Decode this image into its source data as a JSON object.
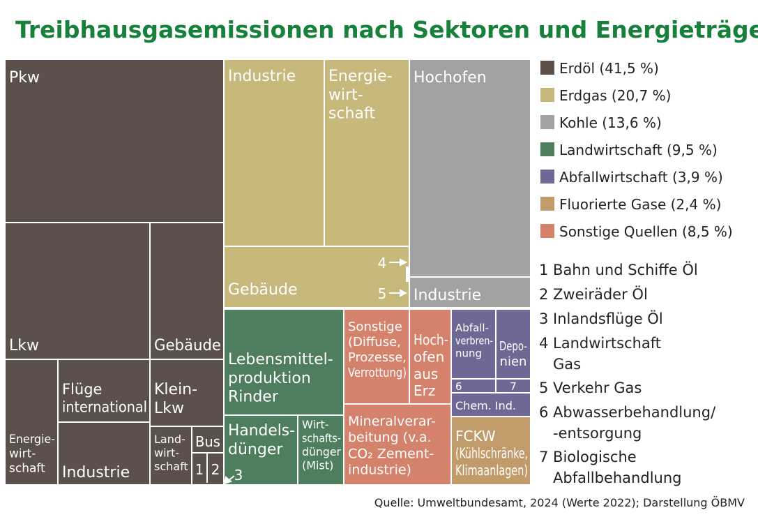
{
  "header": {
    "title": "Treibhausgasemissionen nach Sektoren und Energieträgern"
  },
  "nodes": [
    {
      "label": [
        "Pkw"
      ]
    },
    {
      "label": [
        "Lkw"
      ]
    },
    {
      "label": [
        "Gebäude"
      ]
    },
    {
      "label": [
        "Energie-",
        "wirt-",
        "schaft"
      ]
    },
    {
      "label": [
        "Flüge",
        "international"
      ]
    },
    {
      "label": [
        "Industrie"
      ]
    },
    {
      "label": [
        "Klein-",
        "Lkw"
      ]
    },
    {
      "label": [
        "Land-",
        "wirt-",
        "schaft"
      ]
    },
    {
      "label": [
        "Bus"
      ]
    },
    {
      "label": [
        "1"
      ]
    },
    {
      "label": [
        "2"
      ]
    },
    {
      "label": [
        "Industrie"
      ]
    },
    {
      "label": [
        "Energie-",
        "wirt-",
        "schaft"
      ]
    },
    {
      "label": [
        "Gebäude"
      ]
    },
    {
      "label": [
        "Hochofen"
      ]
    },
    {
      "label": [
        "Industrie"
      ]
    },
    {
      "label": [
        "Lebensmittel-",
        "produktion",
        "Rinder"
      ]
    },
    {
      "label": [
        "Handels-",
        "dünger"
      ]
    },
    {
      "label": [
        "Wirt-",
        "schafts-",
        "dünger",
        "(Mist)"
      ]
    },
    {
      "label": [
        "Sonstige",
        "(Diffuse,",
        "Prozesse,",
        "Verrottung)"
      ]
    },
    {
      "label": [
        "Hoch-",
        "ofen",
        "aus",
        "Erz"
      ]
    },
    {
      "label": [
        "Mineralverar-",
        "beitung (v.a.",
        "CO₂ Zement-",
        "industrie)"
      ]
    },
    {
      "label": [
        "Abfall-",
        "verbren-",
        "nung"
      ]
    },
    {
      "label": [
        "Depo-",
        "nien"
      ]
    },
    {
      "label": [
        "6"
      ]
    },
    {
      "label": [
        "7"
      ]
    },
    {
      "label": [
        "Chem. Ind."
      ]
    },
    {
      "label": [
        "FCKW",
        "(Kühlschränke,",
        "Klimaanlagen)"
      ]
    }
  ],
  "annotations": [
    "4",
    "5",
    "3"
  ],
  "legend": [
    {
      "label": "Erdöl (41,5 %)",
      "color": "#5c504b"
    },
    {
      "label": "Erdgas (20,7 %)",
      "color": "#c7b87c"
    },
    {
      "label": "Kohle (13,6 %)",
      "color": "#a2a2a2"
    },
    {
      "label": "Landwirtschaft (9,5 %)",
      "color": "#4f7e5e"
    },
    {
      "label": "Abfallwirtschaft (3,9 %)",
      "color": "#6f6894"
    },
    {
      "label": "Fluorierte Gase (2,4 %)",
      "color": "#c29b6b"
    },
    {
      "label": "Sonstige Quellen (8,5 %)",
      "color": "#d5826d"
    }
  ],
  "notes": [
    [
      "1 Bahn und Schiffe Öl"
    ],
    [
      "2 Zweiräder Öl"
    ],
    [
      "3 Inlandsflüge Öl"
    ],
    [
      "4 Landwirtschaft",
      "Gas"
    ],
    [
      "5 Verkehr Gas"
    ],
    [
      "6 Abwasserbehandlung/",
      "-entsorgung"
    ],
    [
      "7 Biologische",
      "Abfallbehandlung"
    ]
  ],
  "footer": {
    "source": "Quelle: Umweltbundesamt, 2024 (Werte 2022); Darstellung ÖBMV"
  }
}
